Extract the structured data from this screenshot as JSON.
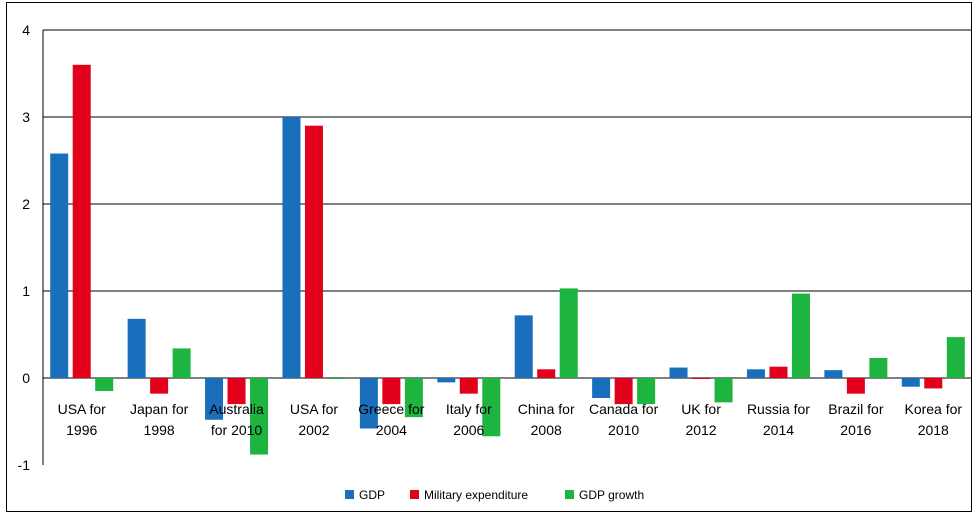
{
  "chart_data": {
    "type": "bar",
    "title": "",
    "xlabel": "",
    "ylabel": "",
    "ylim": [
      -1,
      4
    ],
    "yticks": [
      4,
      3,
      2,
      1,
      0,
      -1
    ],
    "grid": true,
    "legend_position": "bottom",
    "categories": [
      [
        "USA for",
        "1996"
      ],
      [
        "Japan for",
        "1998"
      ],
      [
        "Australia",
        "for 2010"
      ],
      [
        "USA for",
        "2002"
      ],
      [
        "Greece for",
        "2004"
      ],
      [
        "Italy for",
        "2006"
      ],
      [
        "China for",
        "2008"
      ],
      [
        "Canada for",
        "2010"
      ],
      [
        "UK for",
        "2012"
      ],
      [
        "Russia for",
        "2014"
      ],
      [
        "Brazil for",
        "2016"
      ],
      [
        "Korea for",
        "2018"
      ]
    ],
    "series": [
      {
        "name": "GDP",
        "color": "#1a6fbd",
        "values": [
          2.58,
          0.68,
          -0.48,
          3.0,
          -0.58,
          -0.05,
          0.72,
          -0.23,
          0.12,
          0.1,
          0.09,
          -0.1
        ]
      },
      {
        "name": "Military expenditure",
        "color": "#e2001a",
        "values": [
          3.6,
          -0.18,
          -0.3,
          2.9,
          -0.3,
          -0.18,
          0.1,
          -0.3,
          -0.01,
          0.13,
          -0.18,
          -0.12
        ]
      },
      {
        "name": "GDP growth",
        "color": "#1db53f",
        "values": [
          -0.15,
          0.34,
          -0.88,
          -0.01,
          -0.45,
          -0.67,
          1.03,
          -0.3,
          -0.28,
          0.97,
          0.23,
          0.47
        ]
      }
    ]
  }
}
